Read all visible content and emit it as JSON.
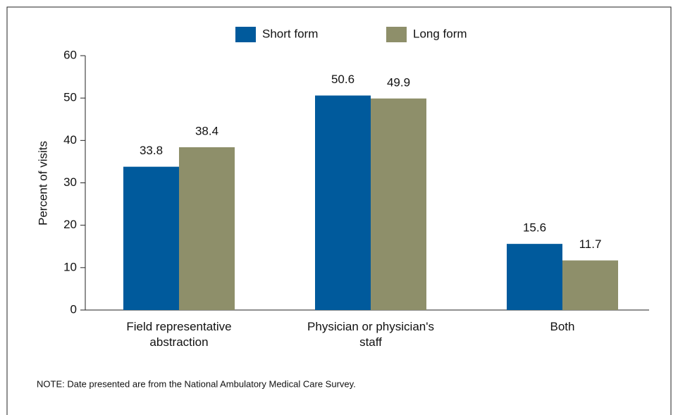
{
  "chart_data": {
    "type": "bar",
    "categories": [
      "Field representative abstraction",
      "Physician or physician's staff",
      "Both"
    ],
    "series": [
      {
        "name": "Short form",
        "color": "#005a9c",
        "values": [
          33.8,
          50.6,
          15.6
        ]
      },
      {
        "name": "Long form",
        "color": "#8e8f6a",
        "values": [
          38.4,
          49.9,
          11.7
        ]
      }
    ],
    "y_label": "Percent of visits",
    "ylim": [
      0,
      60
    ],
    "yticks": [
      0,
      10,
      20,
      30,
      40,
      50,
      60
    ],
    "note": "NOTE: Date presented are from the National Ambulatory Medical Care Survey."
  }
}
